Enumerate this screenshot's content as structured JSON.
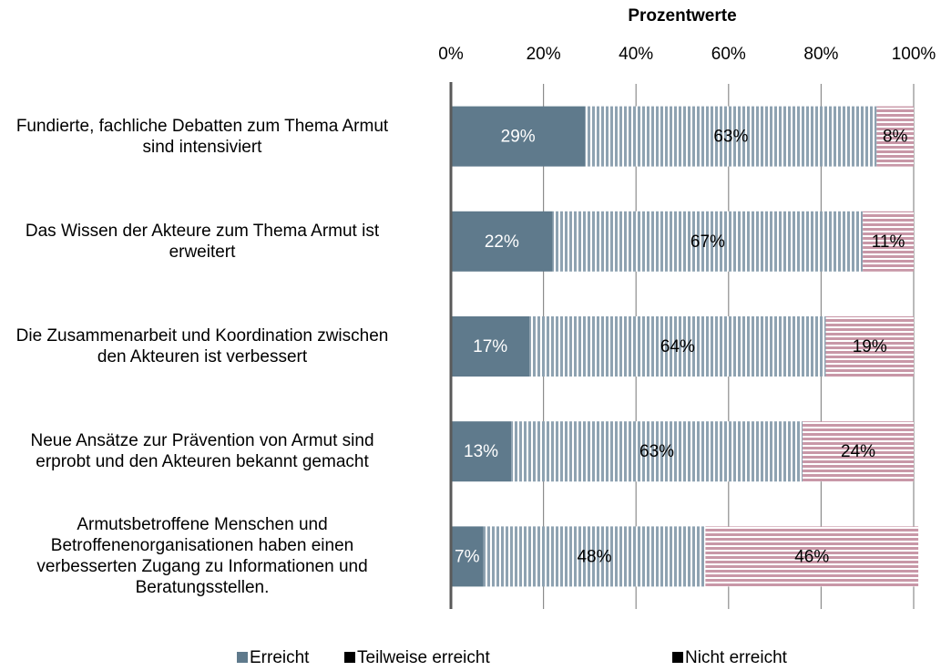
{
  "chart_data": {
    "type": "stacked-barh",
    "x_label": "Prozentwerte",
    "categories": [
      "Fundierte, fachliche Debatten zum Thema Armut sind intensiviert",
      "Das Wissen der Akteure zum Thema Armut ist erweitert",
      "Die Zusammenarbeit und Koordination zwischen den Akteuren ist verbessert",
      "Neue Ansätze zur Prävention von Armut sind erprobt und den Akteuren bekannt gemacht",
      "Armutsbetroffene Menschen und Betroffenenorganisationen haben einen verbesserten Zugang zu Informationen und Beratungsstellen."
    ],
    "series": [
      {
        "name": "Erreicht",
        "color": "#5f7a8c",
        "pattern": "solid",
        "legend_color": "#5f7a8c",
        "label_color": "#ffffff",
        "values": [
          29,
          22,
          17,
          13,
          7
        ],
        "value_labels": [
          "29%",
          "22%",
          "17%",
          "13%",
          "7%"
        ]
      },
      {
        "name": "Teilweise erreicht",
        "color": "#8ea2b1",
        "pattern": "vertical-stripes",
        "legend_color": "#000000",
        "label_color": "#000000",
        "values": [
          63,
          67,
          64,
          63,
          48
        ],
        "value_labels": [
          "63%",
          "67%",
          "64%",
          "63%",
          "48%"
        ]
      },
      {
        "name": "Nicht erreicht",
        "color": "#c897a7",
        "pattern": "horizontal-stripes",
        "legend_color": "#000000",
        "label_color": "#000000",
        "values": [
          8,
          11,
          19,
          24,
          46
        ],
        "value_labels": [
          "8%",
          "11%",
          "19%",
          "24%",
          "46%"
        ]
      }
    ],
    "xlim": [
      0,
      100
    ],
    "xticks": [
      {
        "value": 0,
        "label": "0%"
      },
      {
        "value": 20,
        "label": "20%"
      },
      {
        "value": 40,
        "label": "40%"
      },
      {
        "value": 60,
        "label": "60%"
      },
      {
        "value": 80,
        "label": "80%"
      },
      {
        "value": 100,
        "label": "100%"
      }
    ],
    "grid": true,
    "legend": "bottom"
  }
}
